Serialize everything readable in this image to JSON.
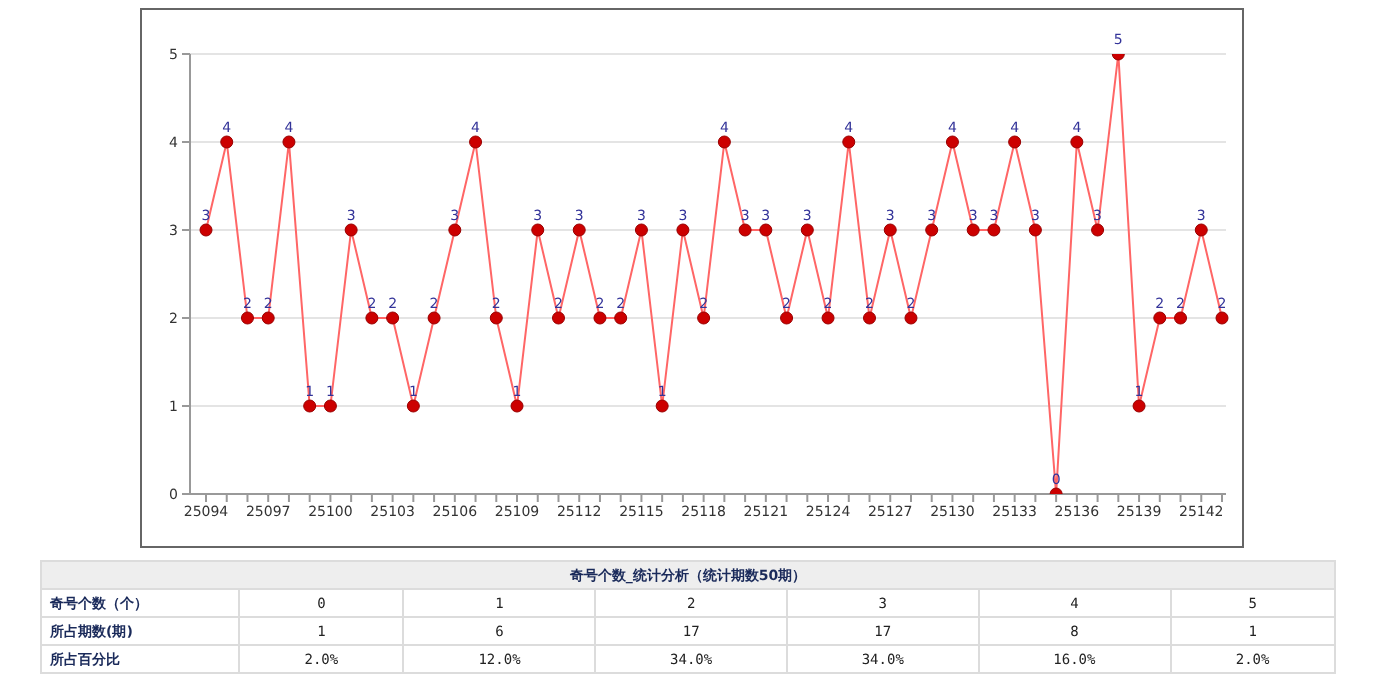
{
  "chart_data": {
    "type": "line",
    "categories": [
      "25094",
      null,
      null,
      "25097",
      null,
      null,
      "25100",
      null,
      null,
      "25103",
      null,
      null,
      "25106",
      null,
      null,
      "25109",
      null,
      null,
      "25112",
      null,
      null,
      "25115",
      null,
      null,
      "25118",
      null,
      null,
      "25121",
      null,
      null,
      "25124",
      null,
      null,
      "25127",
      null,
      null,
      "25130",
      null,
      null,
      "25133",
      null,
      null,
      "25136",
      null,
      null,
      "25139",
      null,
      null,
      "25142",
      null
    ],
    "series": [
      {
        "color": "#ff6666",
        "values": [
          3,
          4,
          2,
          2,
          4,
          1,
          1,
          3,
          2,
          2,
          1,
          2,
          3,
          4,
          2,
          1,
          3,
          2,
          3,
          2,
          2,
          3,
          1,
          3,
          2,
          4,
          3,
          3,
          2,
          3,
          2,
          4,
          2,
          3,
          2,
          3,
          4,
          3,
          3,
          4,
          3,
          0,
          4,
          3,
          5,
          1,
          2,
          2,
          3,
          2
        ]
      }
    ],
    "ylim": [
      0,
      5
    ],
    "yticks": [
      0,
      1,
      2,
      3,
      4,
      5
    ],
    "grid": "y",
    "marker": "circle",
    "line_style": "solid",
    "data_labels": true,
    "annotations": [
      "奇号个数_统计分析（统计期数50期）",
      "奇号个数（个）",
      "0",
      "1",
      "2",
      "3",
      "4",
      "5",
      "所占期数(期)",
      "1",
      "6",
      "17",
      "17",
      "8",
      "1",
      "所占百分比",
      "2.0%",
      "12.0%",
      "34.0%",
      "34.0%",
      "16.0%",
      "2.0%"
    ]
  }
}
